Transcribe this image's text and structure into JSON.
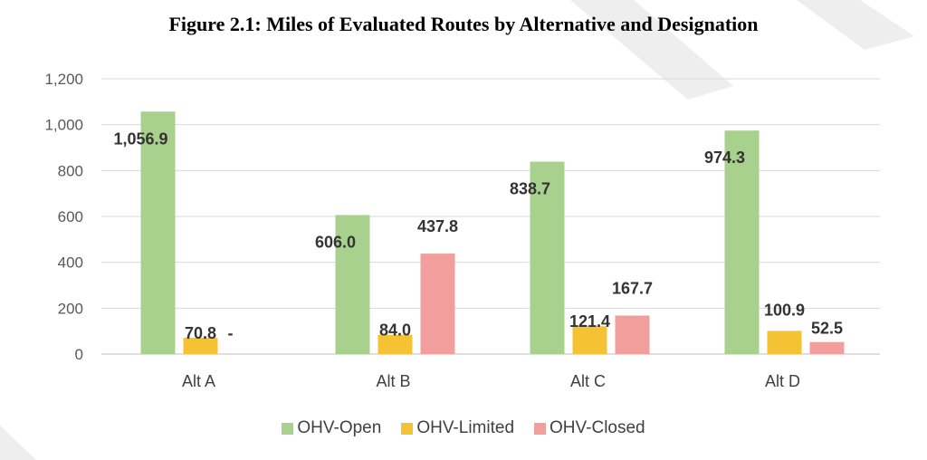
{
  "chart_data": {
    "type": "bar",
    "title": "Figure 2.1: Miles of Evaluated Routes by Alternative and Designation",
    "categories": [
      "Alt A",
      "Alt B",
      "Alt C",
      "Alt D"
    ],
    "series": [
      {
        "name": "OHV-Open",
        "color": "#a9d18e",
        "values": [
          1056.9,
          606.0,
          838.7,
          974.3
        ],
        "labels": [
          "1,056.9",
          "606.0",
          "838.7",
          "974.3"
        ]
      },
      {
        "name": "OHV-Limited",
        "color": "#f4c232",
        "values": [
          70.8,
          84.0,
          121.4,
          100.9
        ],
        "labels": [
          "70.8",
          "84.0",
          "121.4",
          "100.9"
        ]
      },
      {
        "name": "OHV-Closed",
        "color": "#f19e9c",
        "values": [
          0,
          437.8,
          167.7,
          52.5
        ],
        "labels": [
          "-",
          "437.8",
          "167.7",
          "52.5"
        ]
      }
    ],
    "yticks": [
      "0",
      "200",
      "400",
      "600",
      "800",
      "1,000",
      "1,200"
    ],
    "ylim": [
      0,
      1200
    ],
    "grid": true,
    "legend": "bottom"
  }
}
